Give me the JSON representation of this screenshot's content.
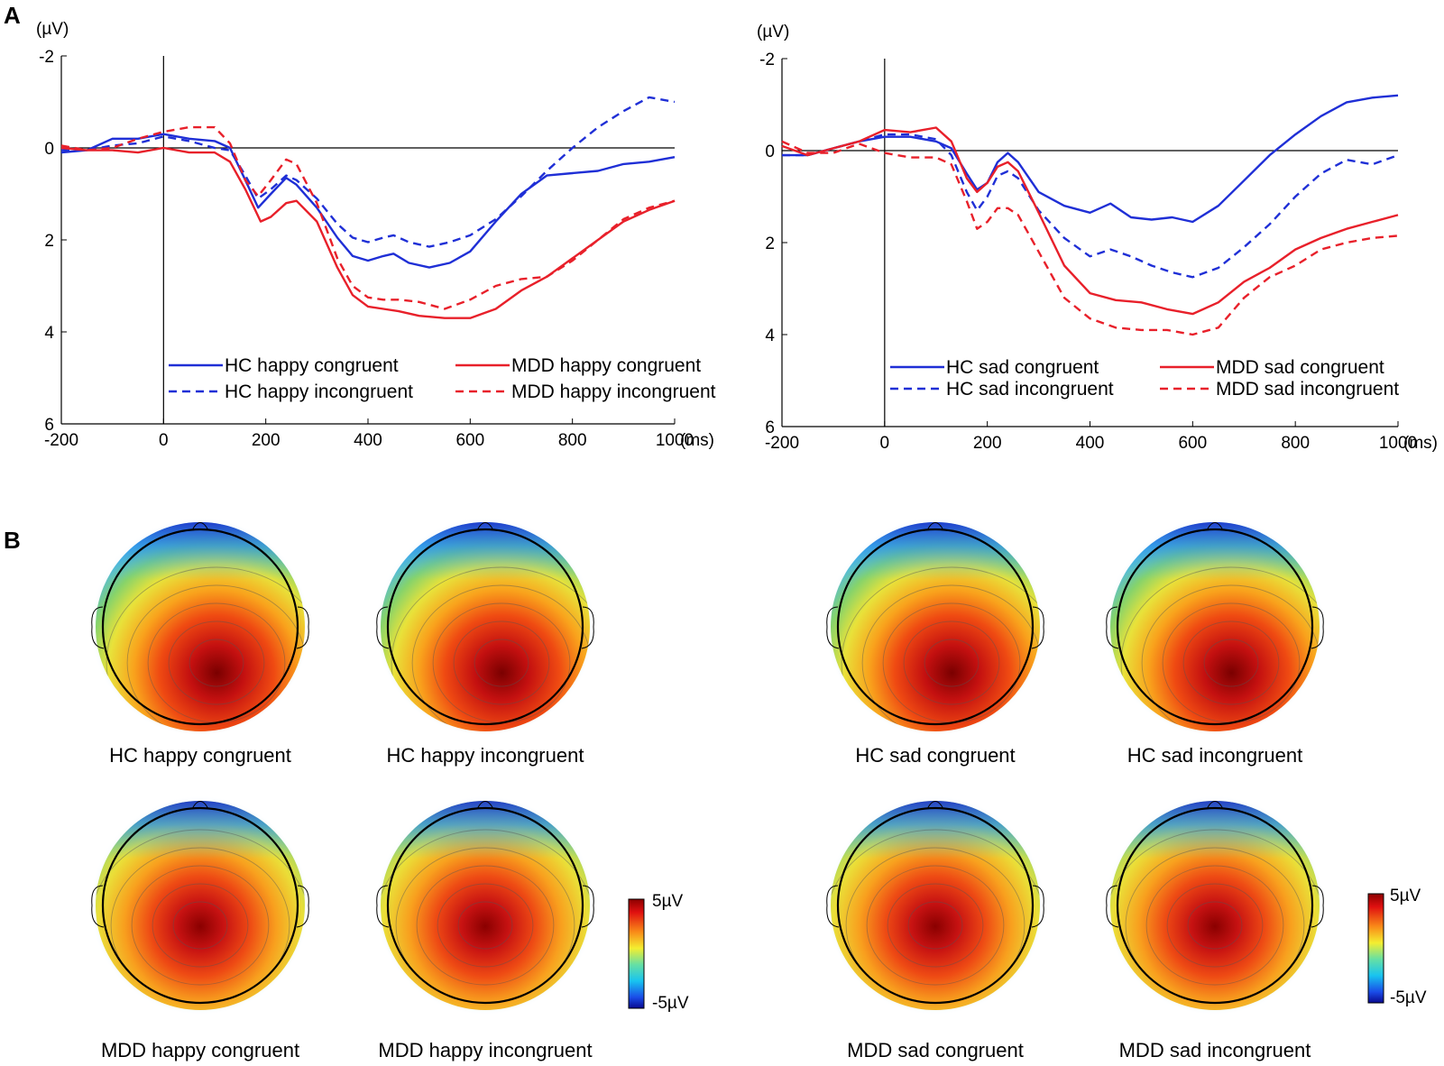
{
  "panel_labels": {
    "a": "A",
    "b": "B"
  },
  "chart_data": [
    {
      "type": "line",
      "name": "happy",
      "y_unit": "(µV)",
      "x_unit": "(ms)",
      "xlim": [
        -200,
        1000
      ],
      "ylim": [
        6,
        -2
      ],
      "y_inverted": true,
      "xticks": [
        -200,
        0,
        200,
        400,
        600,
        800,
        1000
      ],
      "xtick_labels": [
        "-200",
        "0",
        "200",
        "400",
        "600",
        "800",
        "1000"
      ],
      "yticks": [
        -2,
        0,
        2,
        4,
        6
      ],
      "ytick_labels": [
        "-2",
        "0",
        "2",
        "4",
        "6"
      ],
      "legend_position": "bottom",
      "series": [
        {
          "name": "HC happy congruent",
          "color": "#1f2fd6",
          "dash": "solid",
          "x": [
            -200,
            -150,
            -100,
            -50,
            0,
            50,
            100,
            130,
            160,
            185,
            210,
            240,
            260,
            300,
            340,
            370,
            400,
            430,
            450,
            480,
            520,
            560,
            600,
            650,
            700,
            750,
            800,
            850,
            900,
            950,
            1000
          ],
          "y": [
            0.1,
            0.05,
            -0.2,
            -0.2,
            -0.3,
            -0.2,
            -0.15,
            0.0,
            0.7,
            1.3,
            1.0,
            0.65,
            0.8,
            1.3,
            1.95,
            2.35,
            2.45,
            2.35,
            2.3,
            2.5,
            2.6,
            2.5,
            2.25,
            1.6,
            1.0,
            0.6,
            0.55,
            0.5,
            0.35,
            0.3,
            0.2
          ]
        },
        {
          "name": "HC happy incongruent",
          "color": "#1f2fd6",
          "dash": "dashed",
          "x": [
            -200,
            -150,
            -100,
            -50,
            0,
            50,
            100,
            130,
            160,
            185,
            210,
            240,
            260,
            300,
            340,
            370,
            400,
            430,
            450,
            480,
            520,
            560,
            600,
            650,
            700,
            750,
            800,
            850,
            900,
            950,
            1000
          ],
          "y": [
            0.05,
            0.05,
            -0.05,
            -0.1,
            -0.25,
            -0.15,
            0.0,
            0.05,
            0.6,
            1.1,
            0.9,
            0.6,
            0.7,
            1.1,
            1.65,
            1.95,
            2.05,
            1.95,
            1.9,
            2.05,
            2.15,
            2.05,
            1.9,
            1.55,
            1.05,
            0.5,
            0.0,
            -0.45,
            -0.8,
            -1.1,
            -1.0
          ]
        },
        {
          "name": "MDD happy congruent",
          "color": "#e8202a",
          "dash": "solid",
          "x": [
            -200,
            -150,
            -100,
            -50,
            0,
            50,
            100,
            130,
            160,
            190,
            210,
            240,
            260,
            300,
            340,
            370,
            400,
            430,
            460,
            500,
            550,
            600,
            650,
            700,
            750,
            800,
            850,
            900,
            950,
            1000
          ],
          "y": [
            0.0,
            0.05,
            0.05,
            0.1,
            0.0,
            0.1,
            0.1,
            0.3,
            0.9,
            1.6,
            1.5,
            1.2,
            1.15,
            1.6,
            2.6,
            3.2,
            3.45,
            3.5,
            3.55,
            3.65,
            3.7,
            3.7,
            3.5,
            3.1,
            2.8,
            2.4,
            2.0,
            1.6,
            1.35,
            1.15
          ]
        },
        {
          "name": "MDD happy incongruent",
          "color": "#e8202a",
          "dash": "dashed",
          "x": [
            -200,
            -150,
            -100,
            -50,
            0,
            50,
            100,
            130,
            160,
            185,
            210,
            240,
            260,
            300,
            340,
            370,
            400,
            430,
            460,
            500,
            550,
            600,
            650,
            700,
            750,
            800,
            850,
            900,
            950,
            1000
          ],
          "y": [
            -0.05,
            0.05,
            0.0,
            -0.2,
            -0.35,
            -0.45,
            -0.45,
            -0.1,
            0.7,
            1.05,
            0.7,
            0.25,
            0.35,
            1.2,
            2.4,
            3.0,
            3.25,
            3.3,
            3.3,
            3.35,
            3.5,
            3.3,
            3.0,
            2.85,
            2.8,
            2.45,
            2.0,
            1.55,
            1.3,
            1.15
          ]
        }
      ]
    },
    {
      "type": "line",
      "name": "sad",
      "y_unit": "(µV)",
      "x_unit": "(ms)",
      "xlim": [
        -200,
        1000
      ],
      "ylim": [
        6,
        -2
      ],
      "y_inverted": true,
      "xticks": [
        -200,
        0,
        200,
        400,
        600,
        800,
        1000
      ],
      "xtick_labels": [
        "-200",
        "0",
        "200",
        "400",
        "600",
        "800",
        "1000"
      ],
      "yticks": [
        -2,
        0,
        2,
        4,
        6
      ],
      "ytick_labels": [
        "-2",
        "0",
        "2",
        "4",
        "6"
      ],
      "legend_position": "bottom",
      "series": [
        {
          "name": "HC sad congruent",
          "color": "#1f2fd6",
          "dash": "solid",
          "x": [
            -200,
            -150,
            -100,
            -50,
            0,
            50,
            100,
            130,
            160,
            180,
            200,
            220,
            240,
            260,
            300,
            350,
            400,
            440,
            480,
            520,
            560,
            600,
            650,
            700,
            750,
            800,
            850,
            900,
            950,
            1000
          ],
          "y": [
            0.1,
            0.1,
            -0.05,
            -0.2,
            -0.3,
            -0.3,
            -0.2,
            -0.05,
            0.5,
            0.85,
            0.7,
            0.25,
            0.05,
            0.25,
            0.9,
            1.2,
            1.35,
            1.15,
            1.45,
            1.5,
            1.45,
            1.55,
            1.2,
            0.65,
            0.1,
            -0.35,
            -0.75,
            -1.05,
            -1.15,
            -1.2
          ]
        },
        {
          "name": "HC sad incongruent",
          "color": "#1f2fd6",
          "dash": "dashed",
          "x": [
            -200,
            -150,
            -100,
            -50,
            0,
            50,
            100,
            130,
            160,
            180,
            200,
            220,
            240,
            260,
            300,
            350,
            400,
            440,
            480,
            520,
            560,
            600,
            650,
            700,
            750,
            800,
            850,
            900,
            950,
            1000
          ],
          "y": [
            0.1,
            0.1,
            -0.05,
            -0.2,
            -0.35,
            -0.35,
            -0.25,
            0.1,
            0.9,
            1.3,
            1.0,
            0.55,
            0.45,
            0.6,
            1.3,
            1.9,
            2.3,
            2.15,
            2.3,
            2.5,
            2.65,
            2.75,
            2.55,
            2.1,
            1.6,
            1.0,
            0.5,
            0.2,
            0.3,
            0.1
          ]
        },
        {
          "name": "MDD sad congruent",
          "color": "#e8202a",
          "dash": "solid",
          "x": [
            -200,
            -150,
            -100,
            -50,
            0,
            50,
            100,
            130,
            160,
            180,
            200,
            220,
            240,
            260,
            300,
            350,
            400,
            450,
            500,
            550,
            600,
            650,
            700,
            750,
            800,
            850,
            900,
            950,
            1000
          ],
          "y": [
            -0.1,
            0.1,
            -0.05,
            -0.2,
            -0.45,
            -0.4,
            -0.5,
            -0.2,
            0.6,
            0.9,
            0.7,
            0.35,
            0.25,
            0.45,
            1.35,
            2.5,
            3.1,
            3.25,
            3.3,
            3.45,
            3.55,
            3.3,
            2.85,
            2.55,
            2.15,
            1.9,
            1.7,
            1.55,
            1.4
          ]
        },
        {
          "name": "MDD sad incongruent",
          "color": "#e8202a",
          "dash": "dashed",
          "x": [
            -200,
            -150,
            -100,
            -50,
            0,
            50,
            100,
            130,
            160,
            180,
            200,
            220,
            240,
            260,
            300,
            350,
            400,
            450,
            500,
            550,
            600,
            650,
            700,
            750,
            800,
            850,
            900,
            950,
            1000
          ],
          "y": [
            -0.2,
            0.05,
            0.05,
            -0.15,
            0.05,
            0.15,
            0.15,
            0.3,
            1.1,
            1.7,
            1.55,
            1.25,
            1.25,
            1.4,
            2.2,
            3.2,
            3.65,
            3.85,
            3.9,
            3.9,
            4.0,
            3.85,
            3.2,
            2.75,
            2.5,
            2.15,
            2.0,
            1.9,
            1.85
          ]
        }
      ]
    }
  ],
  "topomaps": {
    "happy": [
      {
        "label": "HC happy congruent",
        "variant": "hc"
      },
      {
        "label": "HC happy incongruent",
        "variant": "hc"
      },
      {
        "label": "MDD happy congruent",
        "variant": "mdd"
      },
      {
        "label": "MDD happy incongruent",
        "variant": "mdd"
      }
    ],
    "sad": [
      {
        "label": "HC sad congruent",
        "variant": "hc"
      },
      {
        "label": "HC sad incongruent",
        "variant": "hc"
      },
      {
        "label": "MDD sad congruent",
        "variant": "mdd"
      },
      {
        "label": "MDD sad incongruent",
        "variant": "mdd"
      }
    ]
  },
  "colorbar": {
    "max_label": "5µV",
    "min_label": "-5µV",
    "max_value": 5,
    "min_value": -5
  },
  "colors": {
    "blue": "#1f2fd6",
    "red": "#e8202a"
  }
}
